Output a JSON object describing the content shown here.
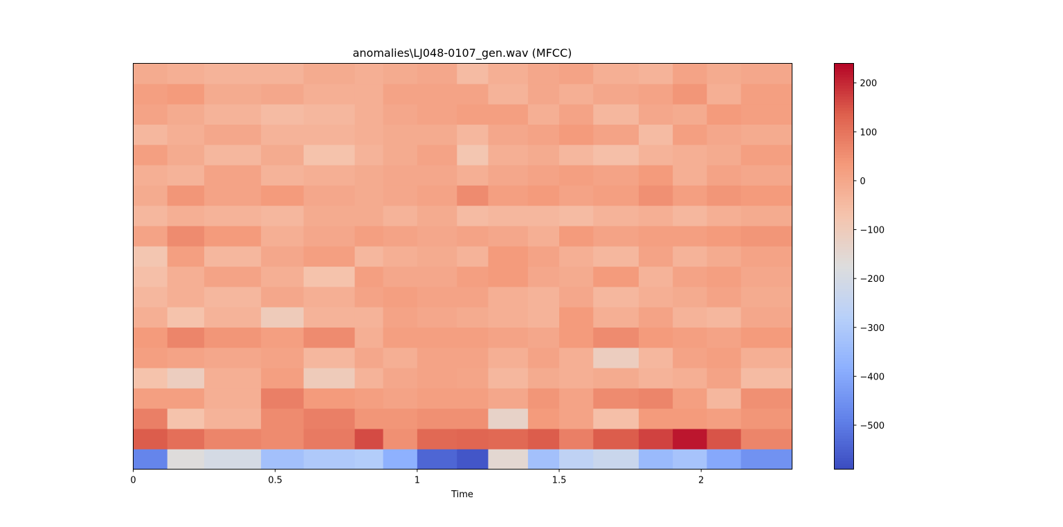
{
  "chart_data": {
    "type": "heatmap",
    "title": "anomalies\\LJ048-0107_gen.wav (MFCC)",
    "xlabel": "Time",
    "ylabel": "",
    "xlim": [
      0,
      2.32
    ],
    "x_ticks": [
      0,
      0.5,
      1,
      1.5,
      2
    ],
    "x_tick_labels": [
      "0",
      "0.5",
      "1",
      "1.5",
      "2"
    ],
    "n_coefficients": 20,
    "colormap": "coolwarm",
    "colorbar": {
      "vmin": -590,
      "vmax": 240,
      "ticks": [
        200,
        100,
        0,
        -100,
        -200,
        -300,
        -400,
        -500
      ],
      "tick_labels": [
        "200",
        "100",
        "0",
        "−100",
        "−200",
        "−300",
        "−400",
        "−500"
      ]
    },
    "time_segments": [
      0.0,
      0.12,
      0.25,
      0.45,
      0.6,
      0.78,
      0.88,
      1.0,
      1.14,
      1.25,
      1.39,
      1.5,
      1.62,
      1.78,
      1.9,
      2.02,
      2.14,
      2.32
    ],
    "values": [
      [
        -480,
        -170,
        -200,
        -330,
        -300,
        -290,
        -380,
        -540,
        -570,
        -150,
        -330,
        -260,
        -230,
        -350,
        -320,
        -400,
        -450
      ],
      [
        140,
        110,
        70,
        60,
        90,
        160,
        50,
        120,
        125,
        120,
        140,
        80,
        140,
        170,
        220,
        150,
        70
      ],
      [
        80,
        -70,
        -30,
        60,
        80,
        40,
        40,
        50,
        50,
        -130,
        30,
        10,
        -60,
        30,
        30,
        20,
        40
      ],
      [
        20,
        20,
        -20,
        80,
        30,
        20,
        10,
        20,
        20,
        0,
        40,
        10,
        60,
        70,
        20,
        -40,
        50
      ],
      [
        -70,
        -110,
        -20,
        20,
        -100,
        -30,
        0,
        10,
        5,
        -40,
        -10,
        -20,
        -10,
        -30,
        -20,
        10,
        -50
      ],
      [
        20,
        10,
        0,
        10,
        -40,
        0,
        -20,
        10,
        10,
        -20,
        10,
        -20,
        -110,
        -40,
        10,
        20,
        -20
      ],
      [
        30,
        70,
        40,
        20,
        60,
        -20,
        20,
        20,
        20,
        10,
        0,
        30,
        60,
        30,
        20,
        10,
        30
      ],
      [
        -20,
        -70,
        -30,
        -100,
        -30,
        -30,
        10,
        0,
        -10,
        -20,
        -30,
        30,
        -20,
        10,
        -30,
        -40,
        0
      ],
      [
        -40,
        -20,
        -40,
        0,
        -20,
        10,
        20,
        10,
        10,
        -20,
        -30,
        0,
        -40,
        -20,
        -10,
        10,
        -10
      ],
      [
        -60,
        -20,
        10,
        -20,
        -70,
        20,
        0,
        0,
        20,
        30,
        0,
        -10,
        30,
        -30,
        10,
        20,
        0
      ],
      [
        -80,
        20,
        -40,
        0,
        20,
        -40,
        -20,
        -10,
        -30,
        30,
        10,
        -20,
        -40,
        10,
        -30,
        -10,
        10
      ],
      [
        10,
        60,
        30,
        -20,
        0,
        20,
        10,
        0,
        10,
        0,
        -20,
        30,
        10,
        20,
        20,
        30,
        40
      ],
      [
        -40,
        -20,
        -30,
        -40,
        -10,
        -10,
        -30,
        -10,
        -50,
        -40,
        -40,
        -50,
        -30,
        -20,
        -40,
        -20,
        -10
      ],
      [
        -10,
        40,
        10,
        30,
        0,
        -10,
        0,
        10,
        60,
        20,
        30,
        10,
        20,
        50,
        20,
        40,
        30
      ],
      [
        -20,
        -30,
        10,
        -30,
        -20,
        -10,
        0,
        0,
        -20,
        0,
        10,
        20,
        10,
        30,
        -20,
        10,
        0
      ],
      [
        20,
        -10,
        -40,
        -10,
        -70,
        -30,
        -10,
        10,
        -80,
        -20,
        -10,
        -40,
        -60,
        -30,
        -20,
        -10,
        20
      ],
      [
        -40,
        -20,
        0,
        -30,
        -30,
        -20,
        -10,
        -10,
        -40,
        0,
        10,
        30,
        10,
        -50,
        20,
        0,
        -10
      ],
      [
        10,
        -10,
        -30,
        -50,
        -40,
        -20,
        0,
        10,
        20,
        20,
        -20,
        10,
        -40,
        0,
        -10,
        30,
        20
      ],
      [
        20,
        30,
        -10,
        0,
        -20,
        -20,
        10,
        10,
        10,
        -30,
        0,
        -20,
        0,
        10,
        40,
        -20,
        20
      ],
      [
        -10,
        -20,
        -30,
        -30,
        -10,
        -20,
        -10,
        0,
        -50,
        -20,
        0,
        10,
        -20,
        -30,
        10,
        -10,
        0
      ]
    ]
  }
}
